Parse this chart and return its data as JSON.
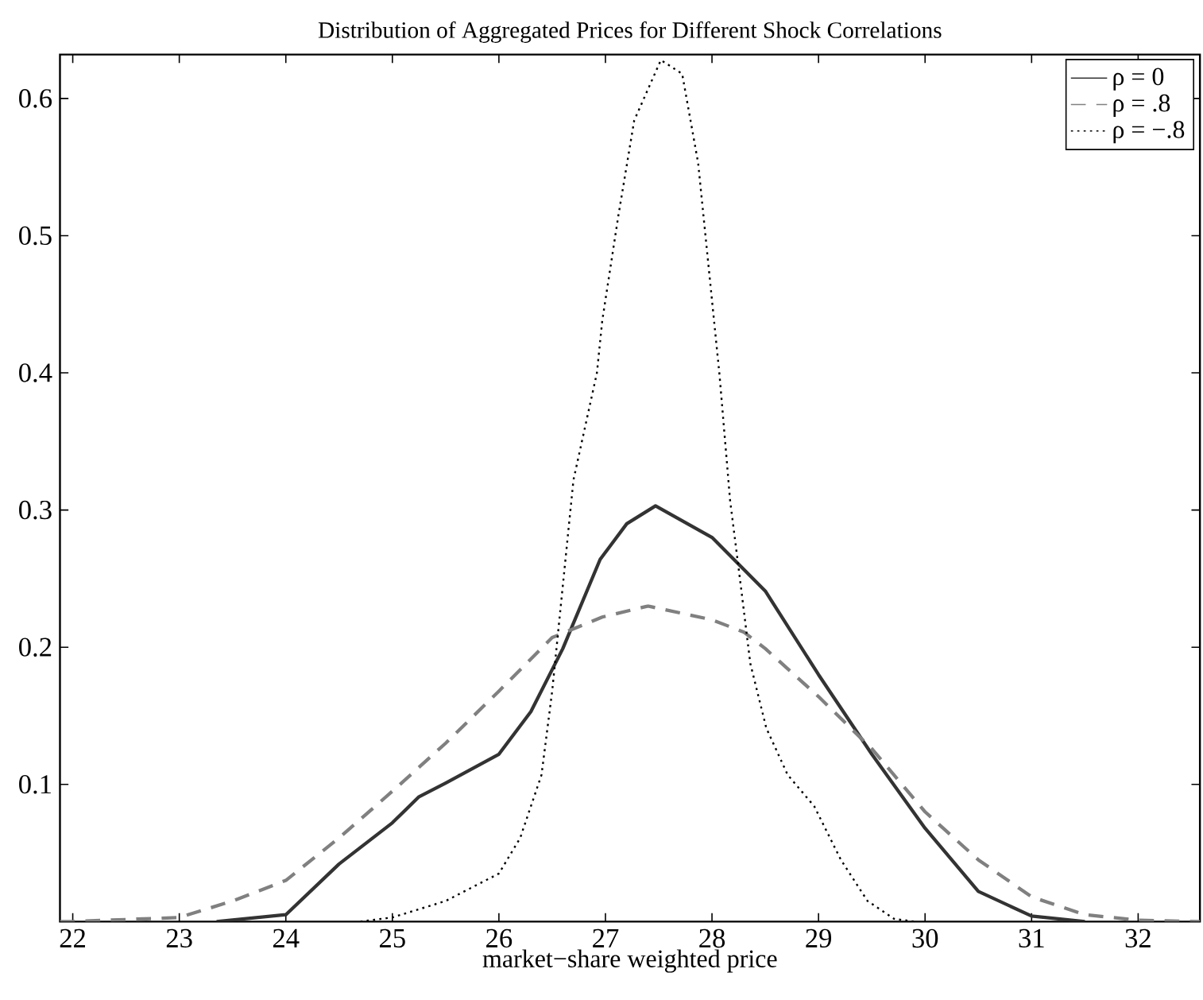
{
  "chart_data": {
    "type": "line",
    "title": "Distribution of Aggregated Prices for Different Shock Correlations",
    "xlabel": "market−share weighted price",
    "xlim": [
      21.88,
      32.58
    ],
    "ylim": [
      0,
      0.632
    ],
    "xticks": [
      22,
      23,
      24,
      25,
      26,
      27,
      28,
      29,
      30,
      31,
      32
    ],
    "yticks": [
      0.1,
      0.2,
      0.3,
      0.4,
      0.5,
      0.6
    ],
    "grid": false,
    "legend": "top right",
    "marker": "none",
    "series": [
      {
        "name": "ρ = 0",
        "color": "#333333",
        "line_style": "solid",
        "x": [
          23.35,
          24,
          24.5,
          25,
          25.25,
          25.5,
          26,
          26.3,
          26.6,
          26.95,
          27.2,
          27.47,
          28,
          28.5,
          29,
          29.5,
          30,
          30.5,
          31,
          31.5
        ],
        "values": [
          0,
          0.005,
          0.042,
          0.072,
          0.091,
          0.101,
          0.122,
          0.153,
          0.199,
          0.264,
          0.29,
          0.303,
          0.28,
          0.241,
          0.18,
          0.122,
          0.068,
          0.022,
          0.004,
          0
        ]
      },
      {
        "name": "ρ = .8",
        "color": "#808080",
        "line_style": "dashed",
        "x": [
          21.88,
          22,
          23,
          23.5,
          24,
          24.5,
          25,
          25.5,
          26,
          26.5,
          26.97,
          27.4,
          28,
          28.3,
          28.5,
          29,
          29.5,
          30,
          30.5,
          31,
          31.5,
          32,
          32.58
        ],
        "values": [
          0,
          0,
          0.003,
          0.015,
          0.03,
          0.061,
          0.095,
          0.13,
          0.168,
          0.207,
          0.222,
          0.23,
          0.22,
          0.211,
          0.199,
          0.164,
          0.126,
          0.08,
          0.045,
          0.018,
          0.005,
          0.001,
          0
        ]
      },
      {
        "name": "ρ = −.8",
        "color": "#000000",
        "line_style": "dotted",
        "x": [
          24.7,
          25,
          25.5,
          26,
          26.2,
          26.4,
          26.5,
          26.6,
          26.7,
          26.92,
          26.97,
          27.12,
          27.27,
          27.52,
          27.72,
          27.87,
          27.97,
          28.07,
          28.17,
          28.27,
          28.36,
          28.51,
          28.71,
          28.96,
          29.21,
          29.46,
          29.71,
          29.9
        ],
        "values": [
          0,
          0.003,
          0.015,
          0.035,
          0.061,
          0.107,
          0.168,
          0.245,
          0.322,
          0.4,
          0.438,
          0.514,
          0.584,
          0.628,
          0.618,
          0.553,
          0.476,
          0.399,
          0.307,
          0.245,
          0.188,
          0.141,
          0.107,
          0.084,
          0.045,
          0.015,
          0.002,
          0
        ]
      }
    ]
  }
}
